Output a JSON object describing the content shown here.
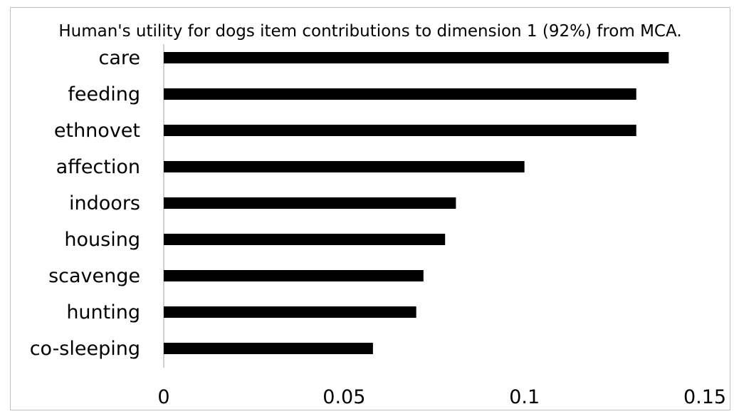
{
  "chart_data": {
    "type": "bar",
    "orientation": "horizontal",
    "title": "Human's utility for dogs item contributions to dimension 1 (92%) from MCA.",
    "categories": [
      "care",
      "feeding",
      "ethnovet",
      "affection",
      "indoors",
      "housing",
      "scavenge",
      "hunting",
      "co-sleeping"
    ],
    "values": [
      0.14,
      0.131,
      0.131,
      0.1,
      0.081,
      0.078,
      0.072,
      0.07,
      0.058
    ],
    "xlim": [
      0,
      0.15
    ],
    "xticks": [
      0,
      0.05,
      0.1,
      0.15
    ],
    "xtick_labels": [
      "0",
      "0.05",
      "0.1",
      "0.15"
    ],
    "xlabel": "",
    "ylabel": "",
    "grid": false,
    "legend": "none",
    "colors": {
      "bar": "#000000",
      "axis": "#bfbfbf",
      "text": "#000000"
    }
  }
}
